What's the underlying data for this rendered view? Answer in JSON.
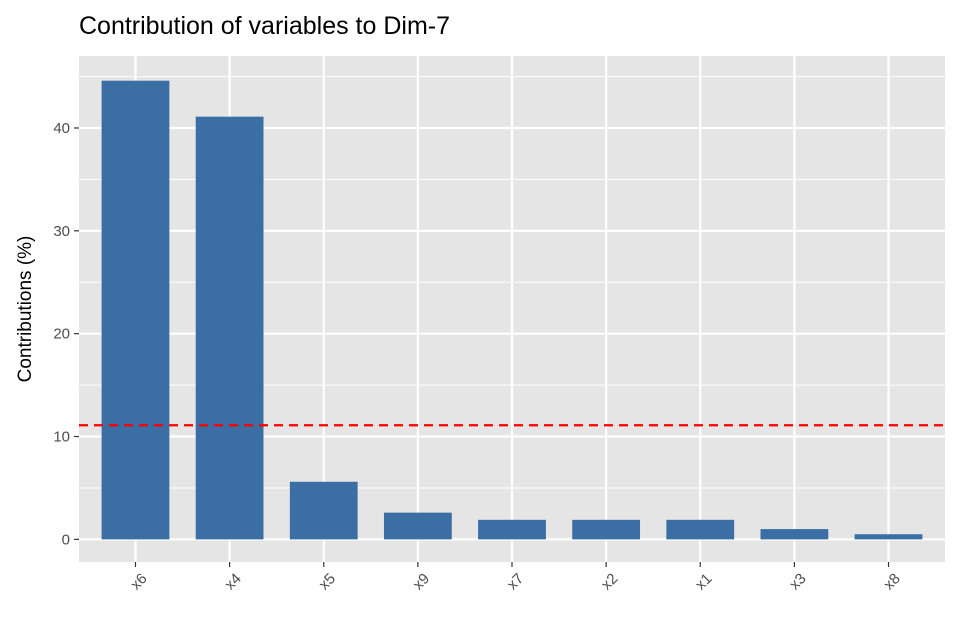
{
  "chart_data": {
    "type": "bar",
    "title": "Contribution of variables to Dim-7",
    "xlabel": "",
    "ylabel": "Contributions (%)",
    "categories": [
      "x6",
      "x4",
      "x5",
      "x9",
      "x7",
      "x2",
      "x1",
      "x3",
      "x8"
    ],
    "values": [
      44.6,
      41.1,
      5.6,
      2.6,
      1.9,
      1.9,
      1.9,
      1.0,
      0.5
    ],
    "reference_line": {
      "value": 11.1,
      "color": "#ff0000",
      "style": "dashed"
    },
    "ylim": [
      -2.2,
      47.0
    ],
    "yticks": [
      0,
      10,
      20,
      30,
      40
    ],
    "grid": true,
    "bar_color": "#3a6ea5",
    "panel_color": "#e5e5e5",
    "grid_color": "#ffffff"
  }
}
